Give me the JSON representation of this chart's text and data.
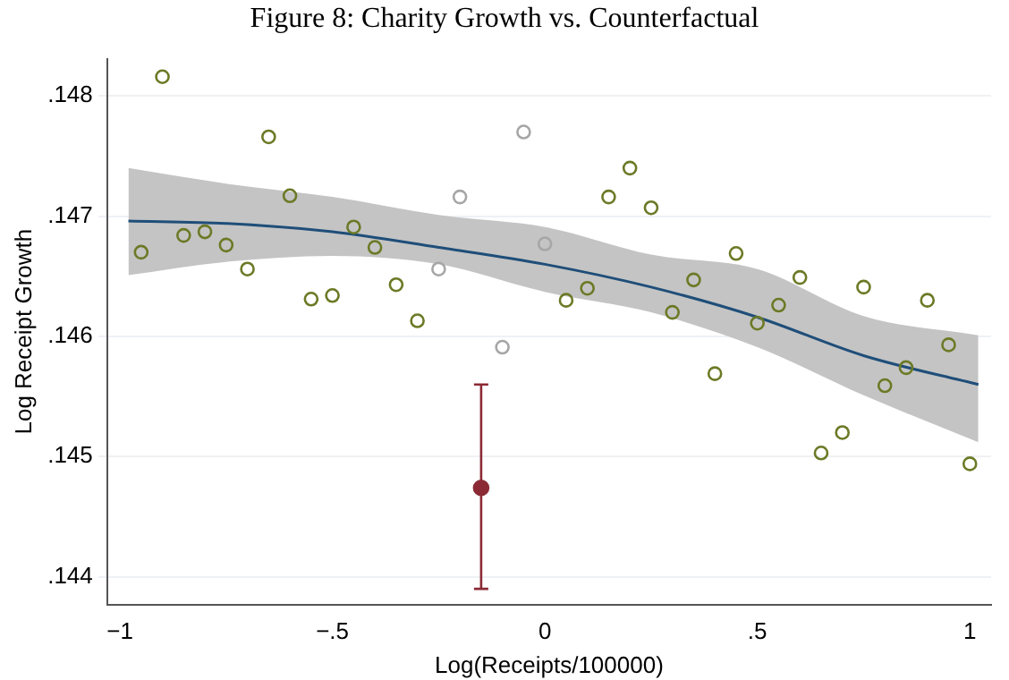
{
  "chart_data": {
    "type": "scatter",
    "title": "Figure 8: Charity Growth vs. Counterfactual",
    "xlabel": "Log(Receipts/100000)",
    "ylabel": "Log Receipt Growth",
    "xlim": [
      -1.03,
      1.05
    ],
    "xticks": [
      {
        "value": -1,
        "label": "−1"
      },
      {
        "value": -0.5,
        "label": "−.5"
      },
      0,
      {
        "value": 0.5,
        "label": ".5"
      },
      1
    ],
    "ylim": [
      0.14377,
      0.14831
    ],
    "yticks": [
      {
        "value": 0.144,
        "label": ".144"
      },
      {
        "value": 0.145,
        "label": ".145"
      },
      {
        "value": 0.146,
        "label": ".146"
      },
      {
        "value": 0.147,
        "label": ".147"
      },
      {
        "value": 0.148,
        "label": ".148"
      }
    ],
    "grid": "y",
    "legend": false,
    "marker": "circle",
    "series": [
      {
        "color": "#6b7a26",
        "x": [
          -0.95,
          -0.9,
          -0.85,
          -0.8,
          -0.75,
          -0.7,
          -0.65,
          -0.6,
          -0.55,
          -0.5,
          -0.45,
          -0.4,
          -0.35,
          -0.3,
          0.05,
          0.1,
          0.15,
          0.2,
          0.25,
          0.3,
          0.35,
          0.4,
          0.45,
          0.5,
          0.55,
          0.6,
          0.65,
          0.7,
          0.75,
          0.8,
          0.85,
          0.9,
          0.95,
          1.0
        ],
        "values": [
          0.1467,
          0.14816,
          0.14684,
          0.14687,
          0.14676,
          0.14656,
          0.14766,
          0.14717,
          0.14631,
          0.14634,
          0.14691,
          0.14674,
          0.14643,
          0.14613,
          0.1463,
          0.1464,
          0.14716,
          0.1474,
          0.14707,
          0.1462,
          0.14647,
          0.14569,
          0.14669,
          0.14611,
          0.14626,
          0.14649,
          0.14503,
          0.1452,
          0.14641,
          0.14559,
          0.14574,
          0.1463,
          0.14593,
          0.14494
        ]
      },
      {
        "color": "#a6a6a6",
        "x": [
          -0.25,
          -0.2,
          -0.1,
          -0.05,
          0.0
        ],
        "values": [
          0.14656,
          0.14716,
          0.14591,
          0.1477,
          0.14677
        ]
      },
      {
        "type": "line",
        "color": "#1f4e79",
        "marker": "none",
        "x": [
          -0.98,
          -0.75,
          -0.5,
          -0.25,
          0,
          0.25,
          0.5,
          0.75,
          1.02
        ],
        "values": [
          0.14696,
          0.14694,
          0.14687,
          0.14674,
          0.1466,
          0.14641,
          0.14616,
          0.14584,
          0.1456
        ],
        "lower": [
          0.14651,
          0.14662,
          0.14667,
          0.1466,
          0.14637,
          0.1462,
          0.14591,
          0.14551,
          0.14512
        ],
        "upper": [
          0.1474,
          0.14727,
          0.14716,
          0.14701,
          0.14691,
          0.14668,
          0.14656,
          0.14617,
          0.14601
        ]
      },
      {
        "type": "scatter",
        "color": "#8b2a35",
        "x": [
          -0.15
        ],
        "values": [
          0.14474
        ],
        "errors": [
          [
            0.1439,
            0.1456
          ]
        ]
      }
    ]
  }
}
